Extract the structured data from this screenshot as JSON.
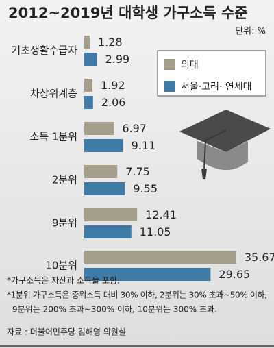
{
  "chart_data": {
    "type": "hbar",
    "title": "2012~2019년 대학생 가구소득 수준",
    "unit": "단위: %",
    "categories": [
      "기초생활수급자",
      "차상위계층",
      "소득 1분위",
      "2분위",
      "9분위",
      "10분위"
    ],
    "series": [
      {
        "name": "의대",
        "color": "#a59e8b",
        "values": [
          1.28,
          1.92,
          6.97,
          7.75,
          12.41,
          35.67
        ]
      },
      {
        "name": "서울·고려· 연세대",
        "color": "#3f7ba6",
        "values": [
          2.99,
          2.06,
          9.11,
          9.55,
          11.05,
          29.65
        ]
      }
    ],
    "notes": [
      "*가구소득은 자산과 소득을 포함.",
      "*1분위 가구소득은 중위소득 대비 30% 이하, 2분위는 30% 초과~50% 이하,",
      "9분위는 200% 초과~300% 이하, 10분위는 300% 초과."
    ],
    "source": "자료 : 더불어민주당 김해영 의원실"
  }
}
